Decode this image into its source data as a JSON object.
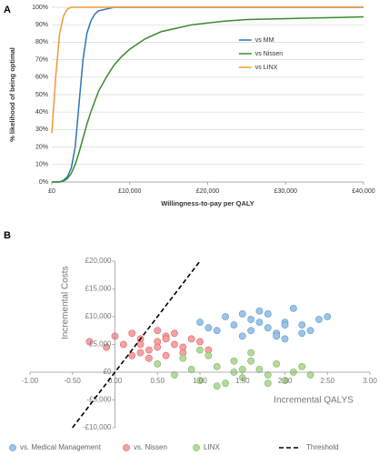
{
  "chart_data": [
    {
      "type": "line",
      "panel_label": "A",
      "xlabel": "Willingness-to-pay per QALY",
      "ylabel": "% likelihood of being optimal",
      "x": [
        0,
        500,
        1000,
        1500,
        2000,
        2500,
        3000,
        3500,
        4000,
        4500,
        5000,
        5500,
        6000,
        7000,
        8000,
        9000,
        10000,
        12000,
        14000,
        16000,
        18000,
        20000,
        22000,
        25000,
        30000,
        35000,
        40000
      ],
      "series": [
        {
          "name": "vs MM",
          "color": "#2e75b6",
          "values": [
            0,
            0,
            0,
            1,
            3,
            8,
            20,
            45,
            70,
            85,
            92,
            96,
            98,
            99,
            100,
            100,
            100,
            100,
            100,
            100,
            100,
            100,
            100,
            100,
            100,
            100,
            100
          ]
        },
        {
          "name": "vs Nissen",
          "color": "#3a8a2e",
          "values": [
            0,
            0,
            0,
            0.5,
            2,
            5,
            10,
            17,
            25,
            33,
            40,
            46,
            52,
            60,
            67,
            72,
            76,
            82,
            86,
            88,
            90,
            91,
            92,
            93,
            93.5,
            94,
            94.5
          ]
        },
        {
          "name": "vs LINX",
          "color": "#f39a35",
          "values": [
            28,
            60,
            85,
            95,
            99,
            100,
            100,
            100,
            100,
            100,
            100,
            100,
            100,
            100,
            100,
            100,
            100,
            100,
            100,
            100,
            100,
            100,
            100,
            100,
            100,
            100,
            100
          ]
        }
      ],
      "xlim": [
        0,
        40000
      ],
      "xticks": [
        {
          "value": 0,
          "label": "£0"
        },
        {
          "value": 10000,
          "label": "£10,000"
        },
        {
          "value": 20000,
          "label": "£20,000"
        },
        {
          "value": 30000,
          "label": "£30,000"
        },
        {
          "value": 40000,
          "label": "£40,000"
        }
      ],
      "ylim": [
        0,
        100
      ],
      "yticks": [
        {
          "value": 0,
          "label": "0%"
        },
        {
          "value": 10,
          "label": "10%"
        },
        {
          "value": 20,
          "label": "20%"
        },
        {
          "value": 30,
          "label": "30%"
        },
        {
          "value": 40,
          "label": "40%"
        },
        {
          "value": 50,
          "label": "50%"
        },
        {
          "value": 60,
          "label": "60%"
        },
        {
          "value": 70,
          "label": "70%"
        },
        {
          "value": 80,
          "label": "80%"
        },
        {
          "value": 90,
          "label": "90%"
        },
        {
          "value": 100,
          "label": "100%"
        }
      ],
      "grid": true,
      "legend": "center right"
    },
    {
      "type": "scatter",
      "panel_label": "B",
      "xlabel": "Incremental QALYS",
      "ylabel": "Incremental Costs",
      "series": [
        {
          "name": "vs. Medical Management",
          "color": "#9dc3e6",
          "edgecolor": "#5b9bd5",
          "x": [
            1.0,
            1.2,
            1.3,
            1.4,
            1.5,
            1.6,
            1.7,
            1.8,
            1.8,
            1.9,
            2.0,
            2.0,
            2.1,
            2.2,
            2.3,
            2.4,
            2.5,
            1.1,
            1.6,
            2.2,
            1.9,
            1.5,
            2.0,
            1.7
          ],
          "values": [
            9000,
            7500,
            10000,
            8500,
            6500,
            9500,
            11000,
            8000,
            10500,
            7000,
            9000,
            6000,
            11500,
            8500,
            7500,
            9500,
            10000,
            8000,
            7500,
            7000,
            6500,
            10500,
            8500,
            9000
          ]
        },
        {
          "name": "vs. Nissen",
          "color": "#f4a3a3",
          "edgecolor": "#e06060",
          "x": [
            -0.3,
            -0.1,
            0.0,
            0.1,
            0.2,
            0.3,
            0.3,
            0.4,
            0.5,
            0.5,
            0.6,
            0.6,
            0.7,
            0.8,
            0.9,
            1.0,
            1.1,
            0.4,
            0.2,
            0.7,
            0.5,
            0.8,
            0.3,
            0.6
          ],
          "values": [
            5500,
            4500,
            6500,
            5000,
            7000,
            3500,
            6000,
            4000,
            5500,
            7500,
            3000,
            6500,
            5000,
            4500,
            6000,
            5500,
            4000,
            2500,
            3000,
            7000,
            4500,
            3500,
            5000,
            6000
          ]
        },
        {
          "name": "LINX",
          "color": "#b5d99c",
          "edgecolor": "#7fba5a",
          "x": [
            0.5,
            0.7,
            0.8,
            0.9,
            1.0,
            1.1,
            1.2,
            1.3,
            1.4,
            1.4,
            1.5,
            1.6,
            1.7,
            1.8,
            1.9,
            2.0,
            2.1,
            2.2,
            2.3,
            1.2,
            1.6,
            1.0,
            1.8,
            1.5
          ],
          "values": [
            1500,
            -500,
            2500,
            500,
            -1500,
            3000,
            1000,
            -2000,
            2000,
            0,
            -1000,
            3500,
            500,
            -500,
            1500,
            -1500,
            0,
            1000,
            -500,
            -2500,
            2000,
            4000,
            -2000,
            500
          ]
        }
      ],
      "threshold": {
        "name": "Threshold",
        "color": "#000000",
        "x": [
          -0.5,
          1.0
        ],
        "values": [
          -10000,
          20000
        ]
      },
      "xlim": [
        -1,
        3
      ],
      "xticks": [
        {
          "value": -1,
          "label": "-1.00"
        },
        {
          "value": -0.5,
          "label": "-0.50"
        },
        {
          "value": 0,
          "label": "0.00"
        },
        {
          "value": 0.5,
          "label": "0.50"
        },
        {
          "value": 1,
          "label": "1.00"
        },
        {
          "value": 1.5,
          "label": "1.50"
        },
        {
          "value": 2,
          "label": "2.00"
        },
        {
          "value": 2.5,
          "label": "2.50"
        },
        {
          "value": 3,
          "label": "3.00"
        }
      ],
      "ylim": [
        -10000,
        20000
      ],
      "yticks": [
        {
          "value": -10000,
          "label": "-£10,000"
        },
        {
          "value": -5000,
          "label": "-£5,000"
        },
        {
          "value": 0,
          "label": "£0"
        },
        {
          "value": 5000,
          "label": "£5,000"
        },
        {
          "value": 10000,
          "label": "£10,000"
        },
        {
          "value": 15000,
          "label": "£15,000"
        },
        {
          "value": 20000,
          "label": "£20,000"
        }
      ],
      "grid": false,
      "legend": "bottom"
    }
  ]
}
